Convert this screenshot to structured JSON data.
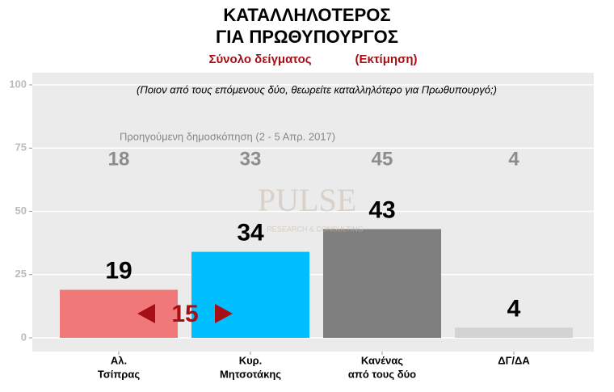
{
  "chart_data": {
    "type": "bar",
    "title": [
      "ΚΑΤΑΛΛΗΛΟΤΕΡΟΣ",
      "ΓΙΑ ΠΡΩΘΥΠΟΥΡΓΟΣ"
    ],
    "subtitle": [
      "Σύνολο δείγματος",
      "(Εκτίμηση)"
    ],
    "question": "(Ποιον από τους επόμενους δύο, θεωρείτε καταλληλότερο για Πρωθυπουργό;)",
    "previous_label": "Προηγούμενη δημοσκόπηση (2 - 5 Απρ. 2017)",
    "previous_values": [
      18,
      33,
      45,
      4
    ],
    "categories": [
      [
        "Αλ.",
        "Τσίπρας"
      ],
      [
        "Κυρ.",
        "Μητσοτάκης"
      ],
      [
        "Κανένας",
        "από τους δύο"
      ],
      [
        "ΔΓ/ΔΑ"
      ]
    ],
    "values": [
      19,
      34,
      43,
      4
    ],
    "colors": [
      "#f07878",
      "#00bfff",
      "#7f7f7f",
      "#d3d3d3"
    ],
    "difference": 15,
    "watermark": [
      "PULSE",
      "RESEARCH & CONSULTING"
    ],
    "ylim": [
      0,
      100
    ],
    "yticks": [
      0,
      25,
      50,
      75,
      100
    ],
    "grid": true
  }
}
